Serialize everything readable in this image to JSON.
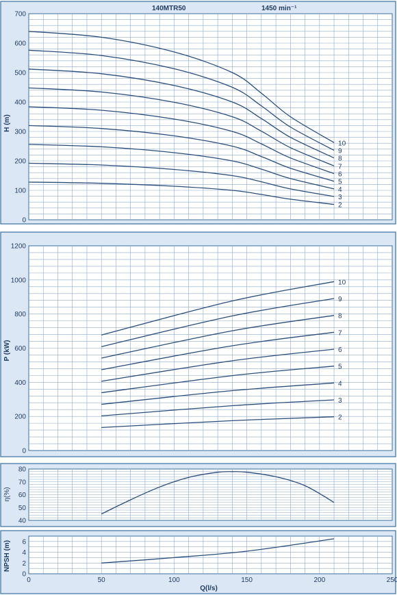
{
  "header": {
    "model": "140MTR50",
    "speed": "1450 min⁻¹"
  },
  "chart_data": [
    {
      "id": "head",
      "type": "line",
      "ylabel": "H (m)",
      "ylim": [
        0,
        700
      ],
      "yticks": [
        0,
        100,
        200,
        300,
        400,
        500,
        600,
        700
      ],
      "xlim": [
        0,
        250
      ],
      "grid": true,
      "series": [
        {
          "name": "10",
          "x": [
            0,
            50,
            100,
            140,
            160,
            180,
            210
          ],
          "values": [
            640,
            620,
            570,
            500,
            430,
            350,
            262
          ]
        },
        {
          "name": "9",
          "x": [
            0,
            50,
            100,
            140,
            160,
            180,
            210
          ],
          "values": [
            576,
            558,
            513,
            450,
            387,
            315,
            236
          ]
        },
        {
          "name": "8",
          "x": [
            0,
            50,
            100,
            140,
            160,
            180,
            210
          ],
          "values": [
            512,
            496,
            456,
            400,
            344,
            280,
            210
          ]
        },
        {
          "name": "7",
          "x": [
            0,
            50,
            100,
            140,
            160,
            180,
            210
          ],
          "values": [
            448,
            434,
            399,
            350,
            301,
            245,
            183
          ]
        },
        {
          "name": "6",
          "x": [
            0,
            50,
            100,
            140,
            160,
            180,
            210
          ],
          "values": [
            384,
            372,
            342,
            300,
            258,
            210,
            157
          ]
        },
        {
          "name": "5",
          "x": [
            0,
            50,
            100,
            140,
            160,
            180,
            210
          ],
          "values": [
            320,
            310,
            285,
            250,
            215,
            175,
            131
          ]
        },
        {
          "name": "4",
          "x": [
            0,
            50,
            100,
            140,
            160,
            180,
            210
          ],
          "values": [
            256,
            248,
            228,
            200,
            172,
            140,
            105
          ]
        },
        {
          "name": "3",
          "x": [
            0,
            50,
            100,
            140,
            160,
            180,
            210
          ],
          "values": [
            192,
            186,
            171,
            150,
            129,
            105,
            79
          ]
        },
        {
          "name": "2",
          "x": [
            0,
            50,
            100,
            140,
            160,
            180,
            210
          ],
          "values": [
            128,
            124,
            114,
            100,
            86,
            70,
            52
          ]
        }
      ]
    },
    {
      "id": "power",
      "type": "line",
      "ylabel": "P (kW)",
      "ylim": [
        0,
        1200
      ],
      "yticks": [
        0,
        200,
        400,
        600,
        800,
        1000,
        1200
      ],
      "xlim": [
        0,
        250
      ],
      "grid": true,
      "series": [
        {
          "name": "10",
          "x": [
            50,
            140,
            210
          ],
          "values": [
            677,
            877,
            990
          ]
        },
        {
          "name": "9",
          "x": [
            50,
            140,
            210
          ],
          "values": [
            609,
            789,
            891
          ]
        },
        {
          "name": "8",
          "x": [
            50,
            140,
            210
          ],
          "values": [
            542,
            702,
            792
          ]
        },
        {
          "name": "7",
          "x": [
            50,
            140,
            210
          ],
          "values": [
            474,
            614,
            693
          ]
        },
        {
          "name": "6",
          "x": [
            50,
            140,
            210
          ],
          "values": [
            406,
            526,
            594
          ]
        },
        {
          "name": "5",
          "x": [
            50,
            140,
            210
          ],
          "values": [
            339,
            439,
            495
          ]
        },
        {
          "name": "4",
          "x": [
            50,
            140,
            210
          ],
          "values": [
            271,
            351,
            396
          ]
        },
        {
          "name": "3",
          "x": [
            50,
            140,
            210
          ],
          "values": [
            203,
            263,
            297
          ]
        },
        {
          "name": "2",
          "x": [
            50,
            140,
            210
          ],
          "values": [
            135,
            175,
            198
          ]
        }
      ]
    },
    {
      "id": "efficiency",
      "type": "line",
      "ylabel": "η(%)",
      "ylim": [
        40,
        80
      ],
      "yticks": [
        40,
        50,
        60,
        70,
        80
      ],
      "xlim": [
        0,
        250
      ],
      "grid": true,
      "series": [
        {
          "x": [
            50,
            70,
            90,
            110,
            130,
            140,
            150,
            170,
            190,
            210
          ],
          "values": [
            45,
            56,
            66,
            73.5,
            77.5,
            78,
            77.5,
            74,
            67,
            54
          ]
        }
      ]
    },
    {
      "id": "npsh",
      "type": "line",
      "ylabel": "NPSH (m)",
      "xlabel": "Q(l/s)",
      "ylim": [
        0,
        7
      ],
      "yticks": [
        0,
        2,
        4,
        6
      ],
      "xlim": [
        0,
        250
      ],
      "xticks": [
        0,
        50,
        100,
        150,
        200,
        250
      ],
      "grid": true,
      "series": [
        {
          "x": [
            50,
            100,
            150,
            210
          ],
          "values": [
            2.0,
            3.0,
            4.2,
            6.5
          ]
        }
      ]
    }
  ]
}
